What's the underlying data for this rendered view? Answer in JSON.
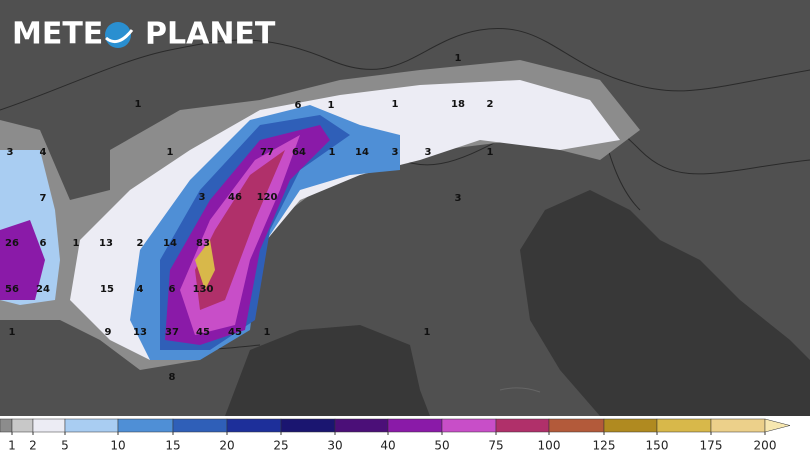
{
  "logo": {
    "left": "METE",
    "right": "PLANET"
  },
  "map": {
    "labels": [
      1,
      6,
      1,
      1,
      18,
      2,
      1,
      3,
      4,
      1,
      77,
      64,
      1,
      14,
      3,
      3,
      1,
      7,
      3,
      46,
      120,
      3,
      26,
      6,
      1,
      13,
      2,
      14,
      83,
      56,
      24,
      15,
      4,
      6,
      130,
      1,
      9,
      13,
      37,
      45,
      45,
      1,
      1,
      8
    ]
  },
  "colorbar": {
    "ticks": [
      1,
      2,
      5,
      10,
      15,
      20,
      25,
      30,
      40,
      50,
      75,
      100,
      125,
      150,
      175,
      200
    ],
    "colors": [
      "#8c8c8c",
      "#c8c8c8",
      "#ececf4",
      "#a9cdf2",
      "#4f8fd6",
      "#2f5fb8",
      "#1d2f9a",
      "#1a1570",
      "#4b0f78",
      "#8a1aa8",
      "#c84ec8",
      "#b0306a",
      "#b35a3a",
      "#b08a20",
      "#d8b84a",
      "#ecd08a",
      "#f7e7b0"
    ]
  }
}
